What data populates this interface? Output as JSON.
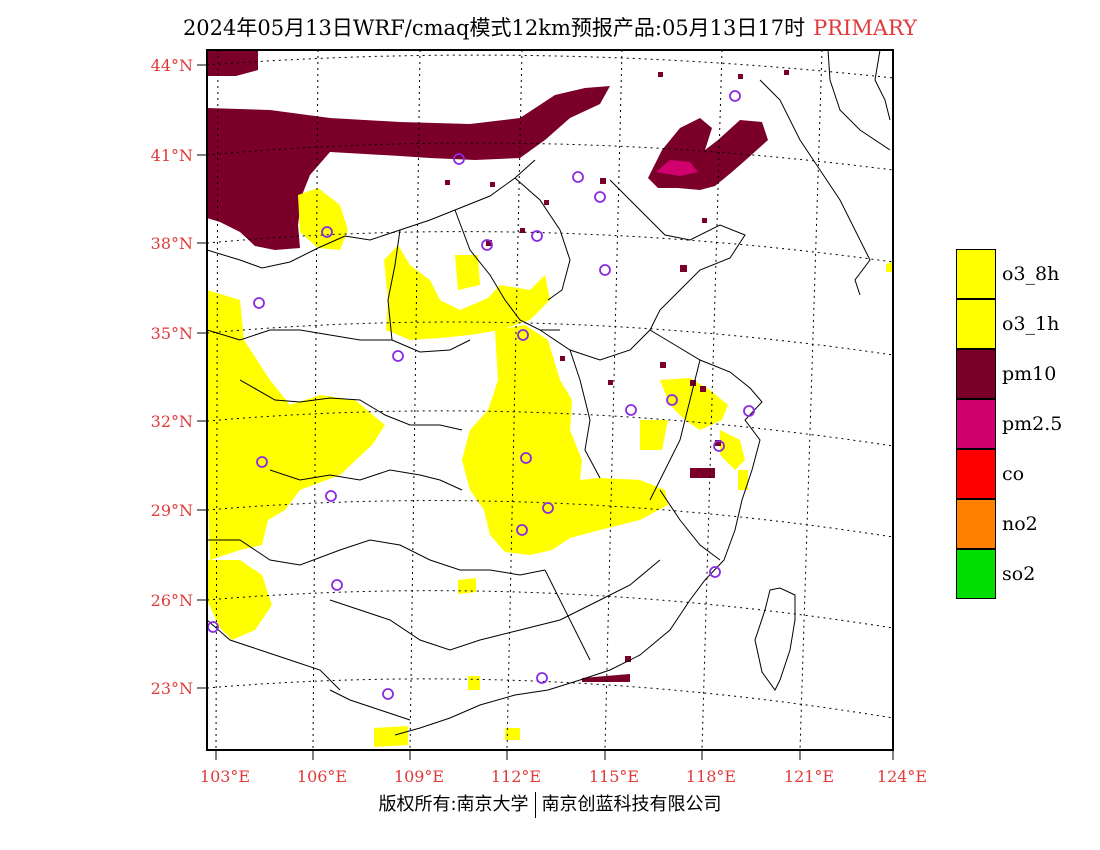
{
  "title": {
    "main": "2024年05月13日WRF/cmaq模式12km预报产品:05月13日17时",
    "tag": "PRIMARY"
  },
  "axes": {
    "lat_labels": [
      "44°N",
      "41°N",
      "38°N",
      "35°N",
      "32°N",
      "29°N",
      "26°N",
      "23°N"
    ],
    "lon_labels": [
      "103°E",
      "106°E",
      "109°E",
      "112°E",
      "115°E",
      "118°E",
      "121°E",
      "124°E"
    ]
  },
  "legend": {
    "items": [
      {
        "label": "o3_8h",
        "color": "#ffff00"
      },
      {
        "label": "o3_1h",
        "color": "#ffff00"
      },
      {
        "label": "pm10",
        "color": "#7a0029"
      },
      {
        "label": "pm2.5",
        "color": "#d1006f"
      },
      {
        "label": "co",
        "color": "#ff0000"
      },
      {
        "label": "no2",
        "color": "#ff7f00"
      },
      {
        "label": "so2",
        "color": "#00dd00"
      }
    ]
  },
  "footer": {
    "left": "版权所有:南京大学",
    "right": "南京创蓝科技有限公司"
  },
  "colors": {
    "tick_labels": "#e03a3a",
    "station_marker": "#8a2be2",
    "ozone": "#ffff00",
    "pm10": "#7a0029",
    "pm25": "#d1006f"
  }
}
